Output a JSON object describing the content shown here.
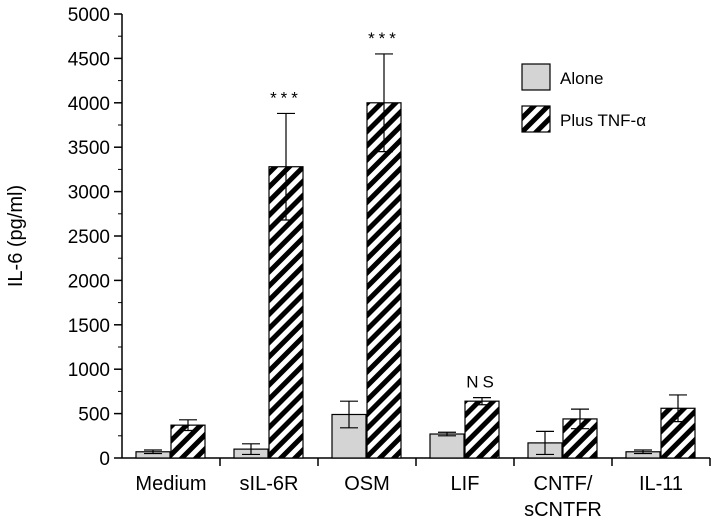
{
  "chart_data": {
    "type": "bar",
    "ylabel": "IL-6 (pg/ml)",
    "ylim": [
      0,
      5000
    ],
    "yticks": [
      0,
      500,
      1000,
      1500,
      2000,
      2500,
      3000,
      3500,
      4000,
      4500,
      5000
    ],
    "categories": [
      "Medium",
      "sIL-6R",
      "OSM",
      "LIF",
      "CNTF/\nsCNTFR",
      "IL-11"
    ],
    "series": [
      {
        "name": "Alone",
        "fill": "#d4d4d4",
        "pattern": "solid",
        "values": [
          70,
          100,
          490,
          270,
          170,
          70
        ],
        "errors": [
          20,
          60,
          150,
          20,
          130,
          20
        ]
      },
      {
        "name": "Plus TNF-α",
        "fill": "#000000",
        "pattern": "diagonal-stripes",
        "values": [
          370,
          3280,
          4000,
          640,
          440,
          560
        ],
        "errors": [
          60,
          600,
          550,
          40,
          110,
          150
        ]
      }
    ],
    "annotations": [
      {
        "category": "sIL-6R",
        "text": "***"
      },
      {
        "category": "OSM",
        "text": "***"
      },
      {
        "category": "LIF",
        "text": "NS"
      }
    ],
    "legend": "top-right",
    "grid": false
  }
}
